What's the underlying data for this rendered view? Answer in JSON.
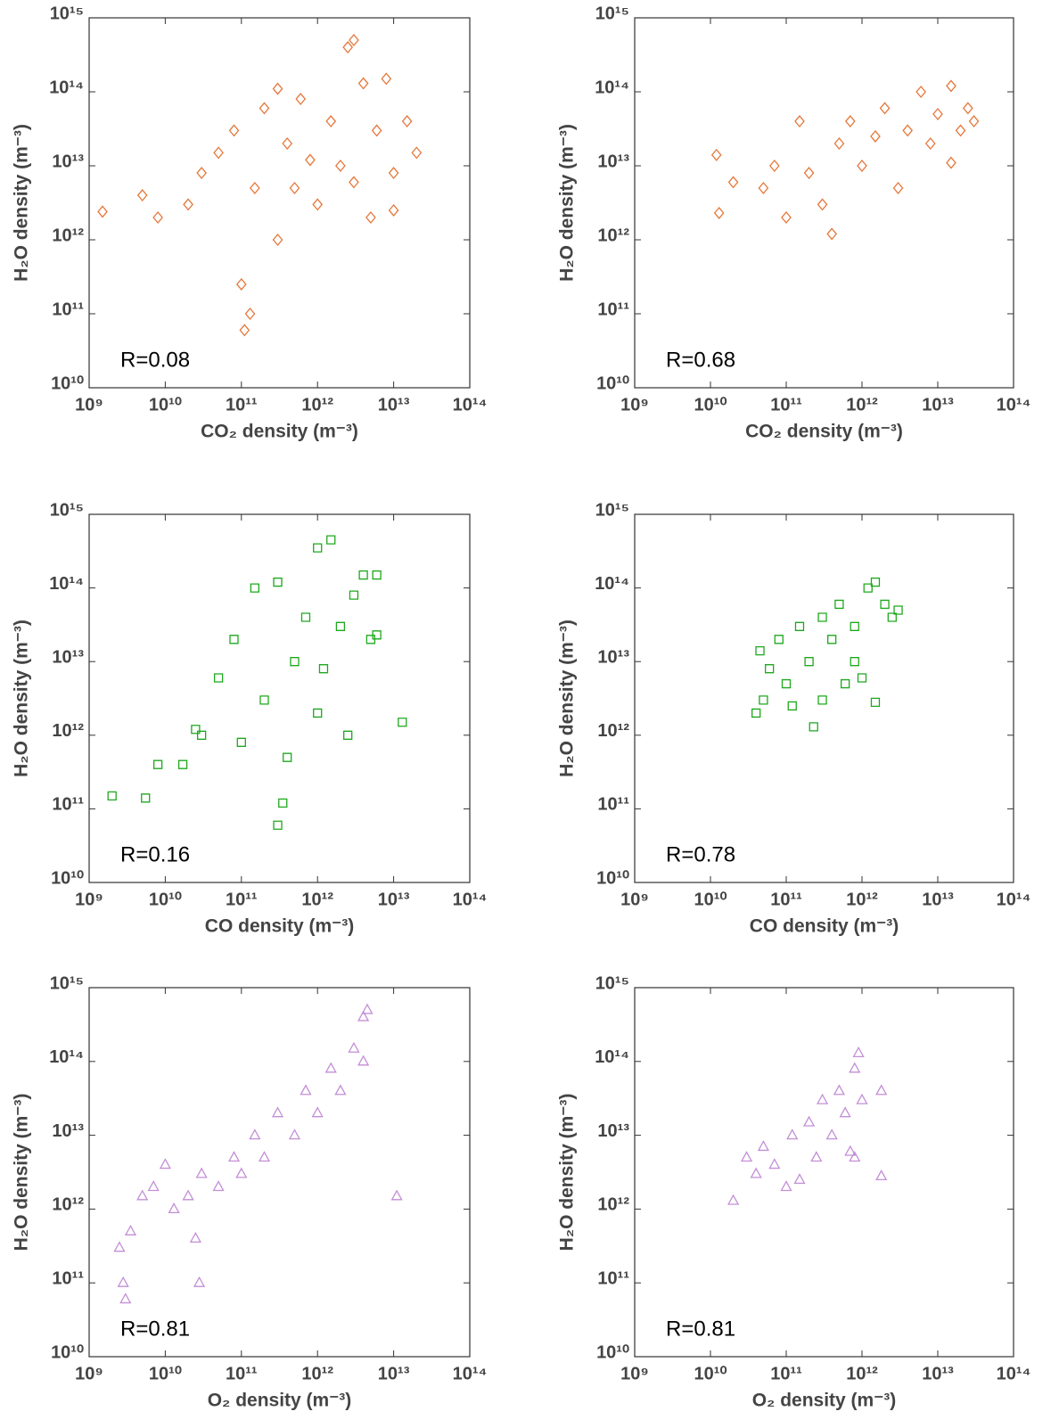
{
  "chart_data": [
    {
      "type": "scatter",
      "x_label": "CO₂ density (m⁻³)",
      "y_label": "H₂O density (m⁻³)",
      "annotation": "R=0.08",
      "marker": "diamond",
      "color": "#e5773a",
      "log_x": true,
      "log_y": true,
      "xlim": [
        1000000000.0,
        100000000000000.0
      ],
      "ylim": [
        10000000000.0,
        1000000000000000.0
      ],
      "xticks": [
        {
          "value": 1000000000.0,
          "label": "10⁹"
        },
        {
          "value": 10000000000.0,
          "label": "10¹⁰"
        },
        {
          "value": 100000000000.0,
          "label": "10¹¹"
        },
        {
          "value": 1000000000000.0,
          "label": "10¹²"
        },
        {
          "value": 10000000000000.0,
          "label": "10¹³"
        },
        {
          "value": 100000000000000.0,
          "label": "10¹⁴"
        }
      ],
      "yticks": [
        {
          "value": 10000000000.0,
          "label": "10¹⁰"
        },
        {
          "value": 100000000000.0,
          "label": "10¹¹"
        },
        {
          "value": 1000000000000.0,
          "label": "10¹²"
        },
        {
          "value": 10000000000000.0,
          "label": "10¹³"
        },
        {
          "value": 100000000000000.0,
          "label": "10¹⁴"
        },
        {
          "value": 1000000000000000.0,
          "label": "10¹⁵"
        }
      ],
      "x": [
        1500000000.0,
        5000000000.0,
        8000000000.0,
        20000000000.0,
        30000000000.0,
        50000000000.0,
        80000000000.0,
        100000000000.0,
        110000000000.0,
        130000000000.0,
        150000000000.0,
        200000000000.0,
        300000000000.0,
        300000000000.0,
        400000000000.0,
        500000000000.0,
        600000000000.0,
        800000000000.0,
        1000000000000.0,
        1500000000000.0,
        2000000000000.0,
        2500000000000.0,
        3000000000000.0,
        3000000000000.0,
        4000000000000.0,
        5000000000000.0,
        6000000000000.0,
        8000000000000.0,
        10000000000000.0,
        15000000000000.0,
        20000000000000.0,
        10000000000000.0
      ],
      "y": [
        2400000000000.0,
        4000000000000.0,
        2000000000000.0,
        3000000000000.0,
        8000000000000.0,
        15000000000000.0,
        30000000000000.0,
        250000000000.0,
        60000000000.0,
        100000000000.0,
        5000000000000.0,
        60000000000000.0,
        110000000000000.0,
        1000000000000.0,
        20000000000000.0,
        5000000000000.0,
        80000000000000.0,
        12000000000000.0,
        3000000000000.0,
        40000000000000.0,
        10000000000000.0,
        400000000000000.0,
        500000000000000.0,
        6000000000000.0,
        130000000000000.0,
        2000000000000.0,
        30000000000000.0,
        150000000000000.0,
        8000000000000.0,
        40000000000000.0,
        15000000000000.0,
        2500000000000.0
      ]
    },
    {
      "type": "scatter",
      "x_label": "CO₂ density (m⁻³)",
      "y_label": "H₂O density (m⁻³)",
      "annotation": "R=0.68",
      "marker": "diamond",
      "color": "#e5773a",
      "log_x": true,
      "log_y": true,
      "xlim": [
        1000000000.0,
        100000000000000.0
      ],
      "ylim": [
        10000000000.0,
        1000000000000000.0
      ],
      "xticks": [
        {
          "value": 1000000000.0,
          "label": "10⁹"
        },
        {
          "value": 10000000000.0,
          "label": "10¹⁰"
        },
        {
          "value": 100000000000.0,
          "label": "10¹¹"
        },
        {
          "value": 1000000000000.0,
          "label": "10¹²"
        },
        {
          "value": 10000000000000.0,
          "label": "10¹³"
        },
        {
          "value": 100000000000000.0,
          "label": "10¹⁴"
        }
      ],
      "yticks": [
        {
          "value": 10000000000.0,
          "label": "10¹⁰"
        },
        {
          "value": 100000000000.0,
          "label": "10¹¹"
        },
        {
          "value": 1000000000000.0,
          "label": "10¹²"
        },
        {
          "value": 10000000000000.0,
          "label": "10¹³"
        },
        {
          "value": 100000000000000.0,
          "label": "10¹⁴"
        },
        {
          "value": 1000000000000000.0,
          "label": "10¹⁵"
        }
      ],
      "x": [
        12000000000.0,
        13000000000.0,
        20000000000.0,
        50000000000.0,
        70000000000.0,
        100000000000.0,
        150000000000.0,
        200000000000.0,
        300000000000.0,
        400000000000.0,
        500000000000.0,
        700000000000.0,
        1000000000000.0,
        1500000000000.0,
        2000000000000.0,
        3000000000000.0,
        4000000000000.0,
        6000000000000.0,
        8000000000000.0,
        10000000000000.0,
        15000000000000.0,
        20000000000000.0,
        25000000000000.0,
        30000000000000.0,
        15000000000000.0
      ],
      "y": [
        14000000000000.0,
        2300000000000.0,
        6000000000000.0,
        5000000000000.0,
        10000000000000.0,
        2000000000000.0,
        40000000000000.0,
        8000000000000.0,
        3000000000000.0,
        1200000000000.0,
        20000000000000.0,
        40000000000000.0,
        10000000000000.0,
        25000000000000.0,
        60000000000000.0,
        5000000000000.0,
        30000000000000.0,
        100000000000000.0,
        20000000000000.0,
        50000000000000.0,
        120000000000000.0,
        30000000000000.0,
        60000000000000.0,
        40000000000000.0,
        11000000000000.0
      ]
    },
    {
      "type": "scatter",
      "x_label": "CO density (m⁻³)",
      "y_label": "H₂O density (m⁻³)",
      "annotation": "R=0.16",
      "marker": "square",
      "color": "#1ea81e",
      "log_x": true,
      "log_y": true,
      "xlim": [
        1000000000.0,
        100000000000000.0
      ],
      "ylim": [
        10000000000.0,
        1000000000000000.0
      ],
      "xticks": [
        {
          "value": 1000000000.0,
          "label": "10⁹"
        },
        {
          "value": 10000000000.0,
          "label": "10¹⁰"
        },
        {
          "value": 100000000000.0,
          "label": "10¹¹"
        },
        {
          "value": 1000000000000.0,
          "label": "10¹²"
        },
        {
          "value": 10000000000000.0,
          "label": "10¹³"
        },
        {
          "value": 100000000000000.0,
          "label": "10¹⁴"
        }
      ],
      "yticks": [
        {
          "value": 10000000000.0,
          "label": "10¹⁰"
        },
        {
          "value": 100000000000.0,
          "label": "10¹¹"
        },
        {
          "value": 1000000000000.0,
          "label": "10¹²"
        },
        {
          "value": 10000000000000.0,
          "label": "10¹³"
        },
        {
          "value": 100000000000000.0,
          "label": "10¹⁴"
        },
        {
          "value": 1000000000000000.0,
          "label": "10¹⁵"
        }
      ],
      "x": [
        2000000000.0,
        5500000000.0,
        8000000000.0,
        17000000000.0,
        25000000000.0,
        30000000000.0,
        50000000000.0,
        80000000000.0,
        100000000000.0,
        150000000000.0,
        200000000000.0,
        300000000000.0,
        300000000000.0,
        350000000000.0,
        400000000000.0,
        500000000000.0,
        700000000000.0,
        1000000000000.0,
        1200000000000.0,
        1500000000000.0,
        2000000000000.0,
        2500000000000.0,
        3000000000000.0,
        4000000000000.0,
        5000000000000.0,
        6000000000000.0,
        6000000000000.0,
        13000000000000.0,
        1000000000000.0
      ],
      "y": [
        150000000000.0,
        140000000000.0,
        400000000000.0,
        400000000000.0,
        1200000000000.0,
        1000000000000.0,
        6000000000000.0,
        20000000000000.0,
        800000000000.0,
        100000000000000.0,
        3000000000000.0,
        120000000000000.0,
        60000000000.0,
        120000000000.0,
        500000000000.0,
        10000000000000.0,
        40000000000000.0,
        2000000000000.0,
        8000000000000.0,
        450000000000000.0,
        30000000000000.0,
        1000000000000.0,
        80000000000000.0,
        150000000000000.0,
        20000000000000.0,
        150000000000000.0,
        23000000000000.0,
        1500000000000.0,
        350000000000000.0
      ]
    },
    {
      "type": "scatter",
      "x_label": "CO density (m⁻³)",
      "y_label": "H₂O density (m⁻³)",
      "annotation": "R=0.78",
      "marker": "square",
      "color": "#1ea81e",
      "log_x": true,
      "log_y": true,
      "xlim": [
        1000000000.0,
        100000000000000.0
      ],
      "ylim": [
        10000000000.0,
        1000000000000000.0
      ],
      "xticks": [
        {
          "value": 1000000000.0,
          "label": "10⁹"
        },
        {
          "value": 10000000000.0,
          "label": "10¹⁰"
        },
        {
          "value": 100000000000.0,
          "label": "10¹¹"
        },
        {
          "value": 1000000000000.0,
          "label": "10¹²"
        },
        {
          "value": 10000000000000.0,
          "label": "10¹³"
        },
        {
          "value": 100000000000000.0,
          "label": "10¹⁴"
        }
      ],
      "yticks": [
        {
          "value": 10000000000.0,
          "label": "10¹⁰"
        },
        {
          "value": 100000000000.0,
          "label": "10¹¹"
        },
        {
          "value": 1000000000000.0,
          "label": "10¹²"
        },
        {
          "value": 10000000000000.0,
          "label": "10¹³"
        },
        {
          "value": 100000000000000.0,
          "label": "10¹⁴"
        },
        {
          "value": 1000000000000000.0,
          "label": "10¹⁵"
        }
      ],
      "x": [
        40000000000.0,
        45000000000.0,
        50000000000.0,
        60000000000.0,
        80000000000.0,
        100000000000.0,
        120000000000.0,
        150000000000.0,
        200000000000.0,
        230000000000.0,
        300000000000.0,
        300000000000.0,
        400000000000.0,
        500000000000.0,
        600000000000.0,
        800000000000.0,
        1000000000000.0,
        1200000000000.0,
        1500000000000.0,
        1500000000000.0,
        2000000000000.0,
        2500000000000.0,
        3000000000000.0,
        800000000000.0
      ],
      "y": [
        2000000000000.0,
        14000000000000.0,
        3000000000000.0,
        8000000000000.0,
        20000000000000.0,
        5000000000000.0,
        2500000000000.0,
        30000000000000.0,
        10000000000000.0,
        1300000000000.0,
        40000000000000.0,
        3000000000000.0,
        20000000000000.0,
        60000000000000.0,
        5000000000000.0,
        30000000000000.0,
        6000000000000.0,
        100000000000000.0,
        120000000000000.0,
        2800000000000.0,
        60000000000000.0,
        40000000000000.0,
        50000000000000.0,
        10000000000000.0
      ]
    },
    {
      "type": "scatter",
      "x_label": "O₂ density (m⁻³)",
      "y_label": "H₂O density (m⁻³)",
      "annotation": "R=0.81",
      "marker": "triangle",
      "color": "#c38fd6",
      "log_x": true,
      "log_y": true,
      "xlim": [
        1000000000.0,
        100000000000000.0
      ],
      "ylim": [
        10000000000.0,
        1000000000000000.0
      ],
      "xticks": [
        {
          "value": 1000000000.0,
          "label": "10⁹"
        },
        {
          "value": 10000000000.0,
          "label": "10¹⁰"
        },
        {
          "value": 100000000000.0,
          "label": "10¹¹"
        },
        {
          "value": 1000000000000.0,
          "label": "10¹²"
        },
        {
          "value": 10000000000000.0,
          "label": "10¹³"
        },
        {
          "value": 100000000000000.0,
          "label": "10¹⁴"
        }
      ],
      "yticks": [
        {
          "value": 10000000000.0,
          "label": "10¹⁰"
        },
        {
          "value": 100000000000.0,
          "label": "10¹¹"
        },
        {
          "value": 1000000000000.0,
          "label": "10¹²"
        },
        {
          "value": 10000000000000.0,
          "label": "10¹³"
        },
        {
          "value": 100000000000000.0,
          "label": "10¹⁴"
        },
        {
          "value": 1000000000000000.0,
          "label": "10¹⁵"
        }
      ],
      "x": [
        2500000000.0,
        2800000000.0,
        3000000000.0,
        3500000000.0,
        5000000000.0,
        7000000000.0,
        10000000000.0,
        13000000000.0,
        20000000000.0,
        25000000000.0,
        28000000000.0,
        30000000000.0,
        50000000000.0,
        80000000000.0,
        100000000000.0,
        150000000000.0,
        200000000000.0,
        300000000000.0,
        500000000000.0,
        700000000000.0,
        1000000000000.0,
        1500000000000.0,
        2000000000000.0,
        3000000000000.0,
        4000000000000.0,
        4500000000000.0,
        4000000000000.0,
        11000000000000.0
      ],
      "y": [
        300000000000.0,
        100000000000.0,
        60000000000.0,
        500000000000.0,
        1500000000000.0,
        2000000000000.0,
        4000000000000.0,
        1000000000000.0,
        1500000000000.0,
        400000000000.0,
        100000000000.0,
        3000000000000.0,
        2000000000000.0,
        5000000000000.0,
        3000000000000.0,
        10000000000000.0,
        5000000000000.0,
        20000000000000.0,
        10000000000000.0,
        40000000000000.0,
        20000000000000.0,
        80000000000000.0,
        40000000000000.0,
        150000000000000.0,
        400000000000000.0,
        500000000000000.0,
        100000000000000.0,
        1500000000000.0
      ]
    },
    {
      "type": "scatter",
      "x_label": "O₂ density (m⁻³)",
      "y_label": "H₂O density (m⁻³)",
      "annotation": "R=0.81",
      "marker": "triangle",
      "color": "#c38fd6",
      "log_x": true,
      "log_y": true,
      "xlim": [
        1000000000.0,
        100000000000000.0
      ],
      "ylim": [
        10000000000.0,
        1000000000000000.0
      ],
      "xticks": [
        {
          "value": 1000000000.0,
          "label": "10⁹"
        },
        {
          "value": 10000000000.0,
          "label": "10¹⁰"
        },
        {
          "value": 100000000000.0,
          "label": "10¹¹"
        },
        {
          "value": 1000000000000.0,
          "label": "10¹²"
        },
        {
          "value": 10000000000000.0,
          "label": "10¹³"
        },
        {
          "value": 100000000000000.0,
          "label": "10¹⁴"
        }
      ],
      "yticks": [
        {
          "value": 10000000000.0,
          "label": "10¹⁰"
        },
        {
          "value": 100000000000.0,
          "label": "10¹¹"
        },
        {
          "value": 1000000000000.0,
          "label": "10¹²"
        },
        {
          "value": 10000000000000.0,
          "label": "10¹³"
        },
        {
          "value": 100000000000000.0,
          "label": "10¹⁴"
        },
        {
          "value": 1000000000000000.0,
          "label": "10¹⁵"
        }
      ],
      "x": [
        20000000000.0,
        30000000000.0,
        40000000000.0,
        50000000000.0,
        70000000000.0,
        100000000000.0,
        120000000000.0,
        150000000000.0,
        200000000000.0,
        250000000000.0,
        300000000000.0,
        400000000000.0,
        500000000000.0,
        600000000000.0,
        700000000000.0,
        800000000000.0,
        900000000000.0,
        800000000000.0,
        1000000000000.0,
        1800000000000.0,
        1800000000000.0
      ],
      "y": [
        1300000000000.0,
        5000000000000.0,
        3000000000000.0,
        7000000000000.0,
        4000000000000.0,
        2000000000000.0,
        10000000000000.0,
        2500000000000.0,
        15000000000000.0,
        5000000000000.0,
        30000000000000.0,
        10000000000000.0,
        40000000000000.0,
        20000000000000.0,
        6000000000000.0,
        80000000000000.0,
        130000000000000.0,
        5000000000000.0,
        30000000000000.0,
        40000000000000.0,
        2800000000000.0
      ]
    }
  ]
}
